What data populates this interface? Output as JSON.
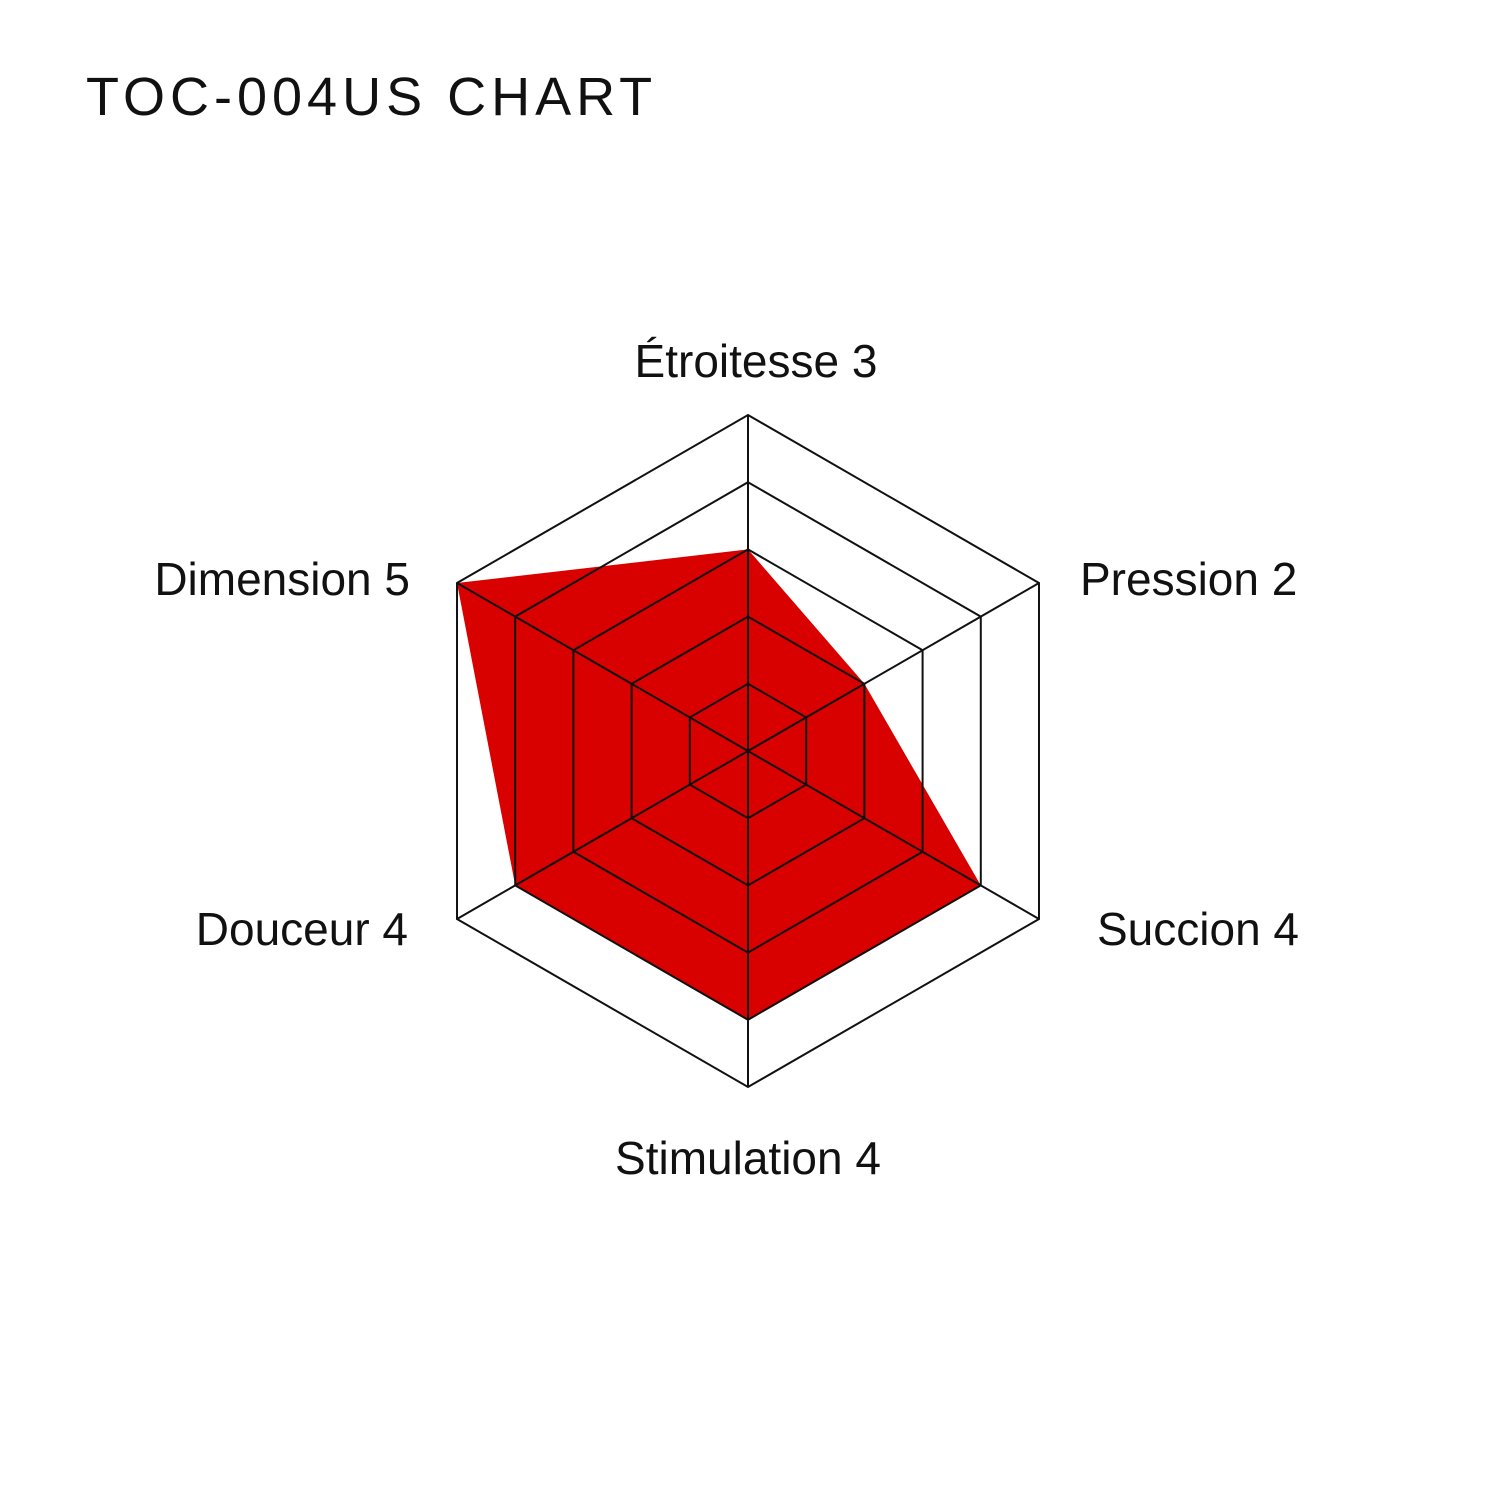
{
  "chart_data": {
    "type": "radar",
    "title": "TOC-004US CHART",
    "categories": [
      "Étroitesse",
      "Pression",
      "Succion",
      "Stimulation",
      "Douceur",
      "Dimension"
    ],
    "values": [
      3,
      2,
      4,
      4,
      4,
      5
    ],
    "rlim": [
      0,
      5
    ],
    "levels": 5,
    "grid": true,
    "fill_color": "#d90000",
    "grid_color": "#111111"
  }
}
